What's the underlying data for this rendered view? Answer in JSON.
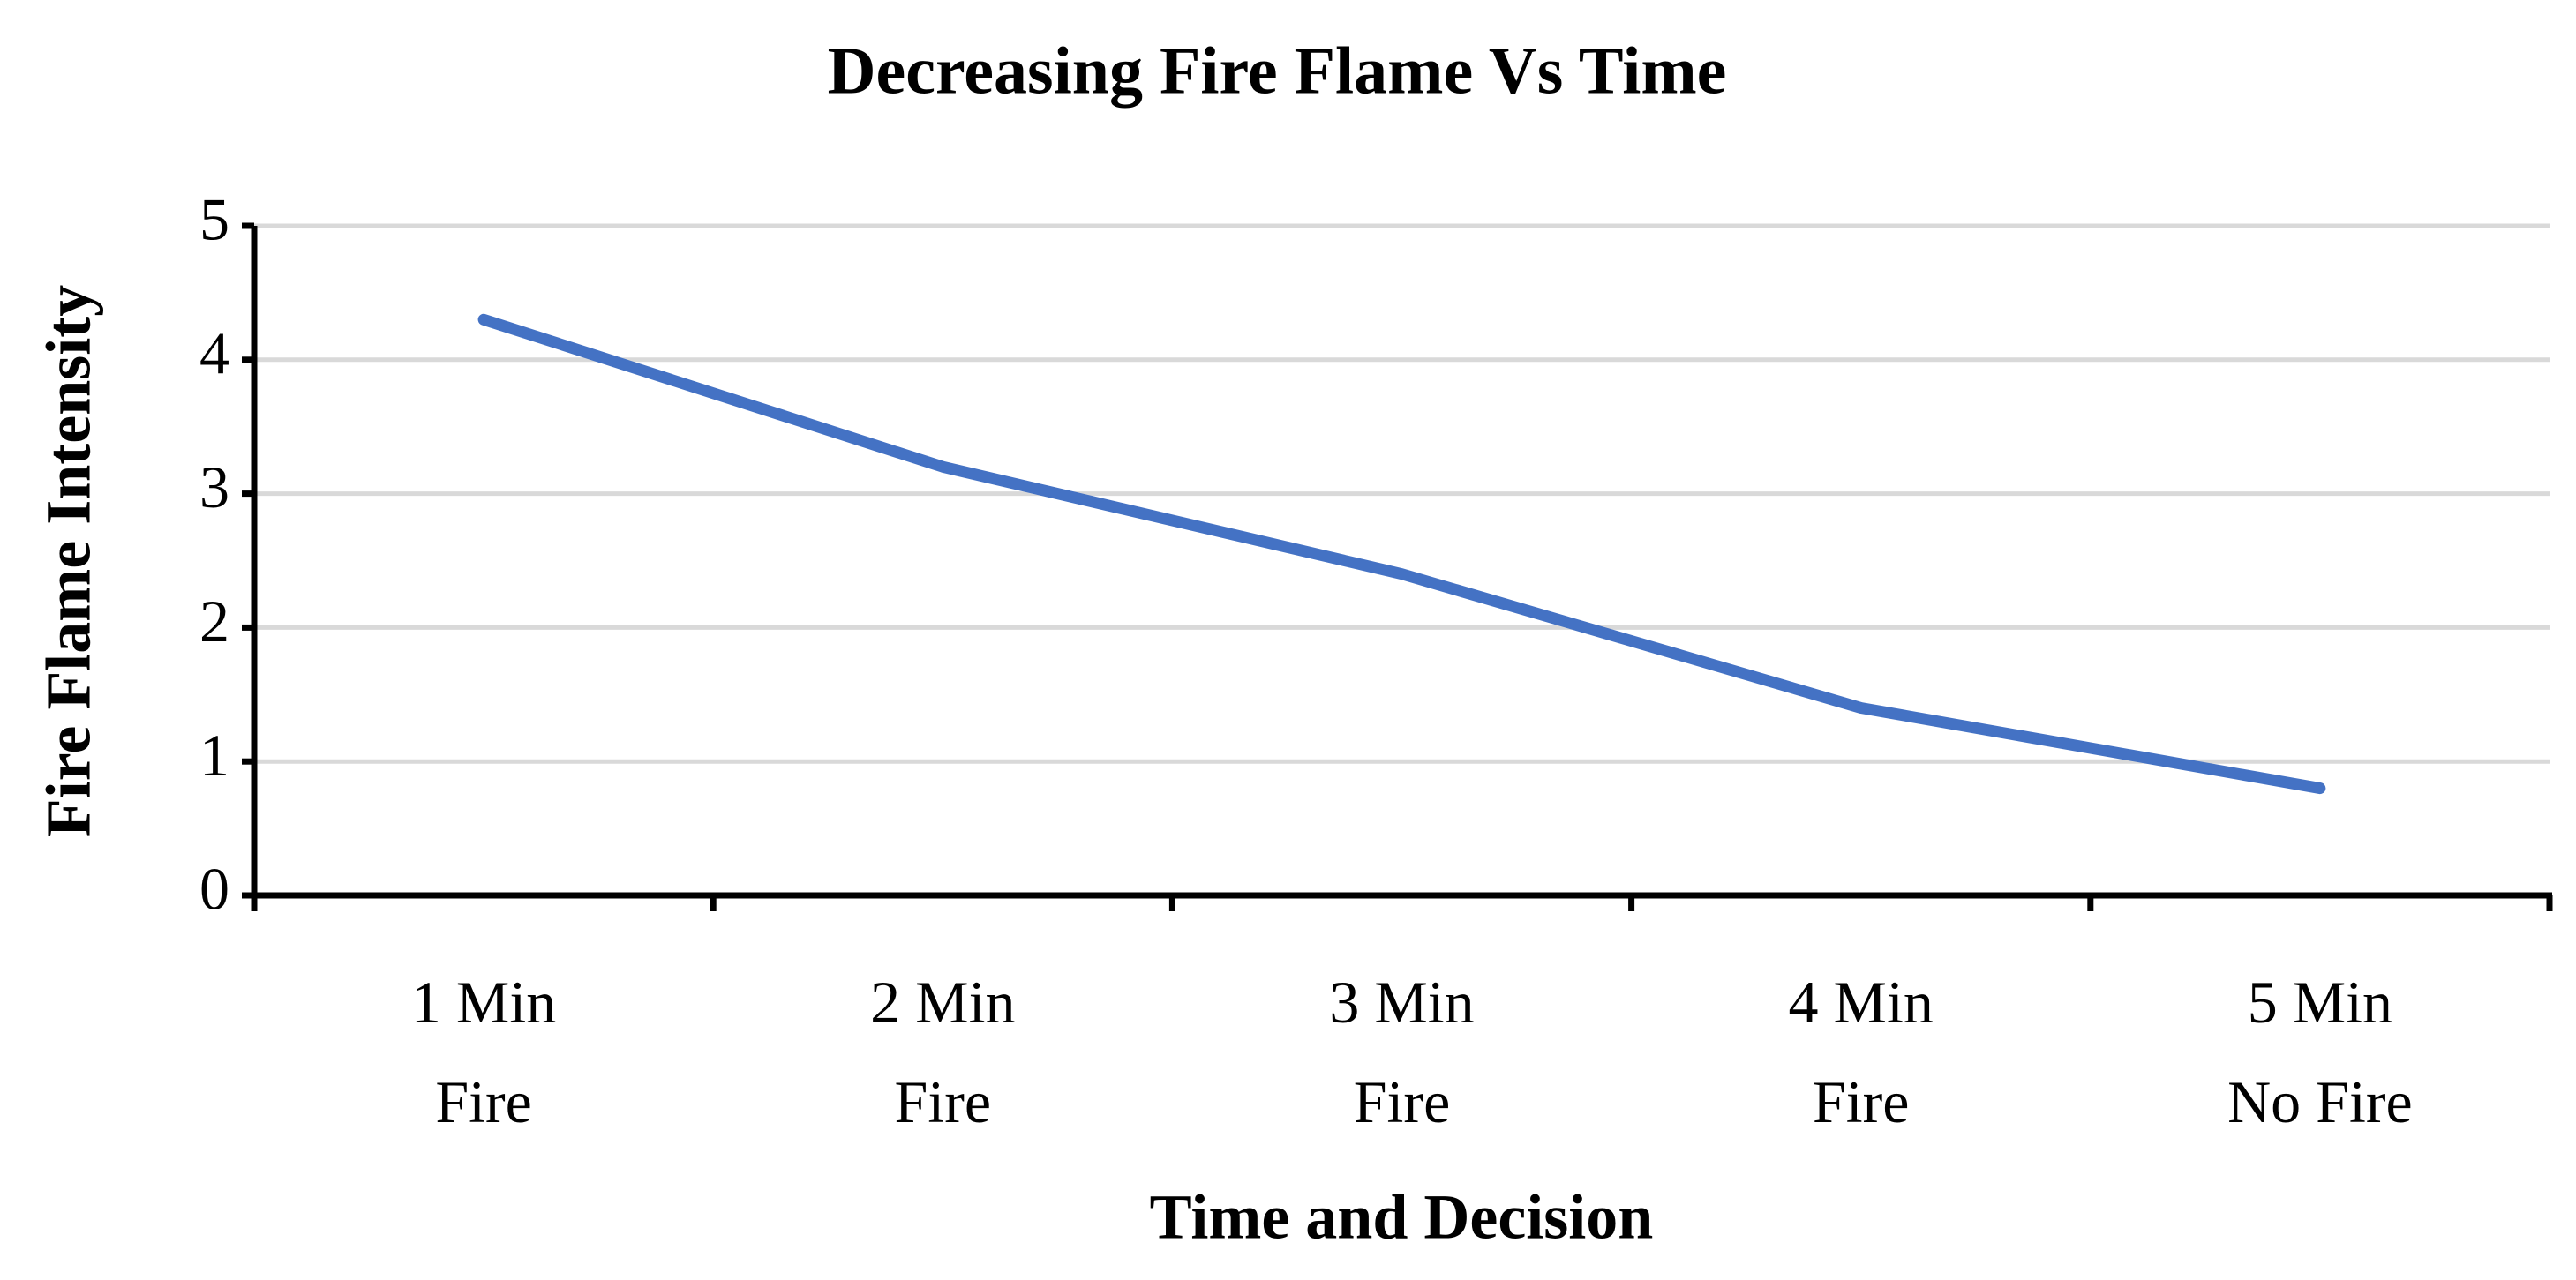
{
  "chart_data": {
    "type": "line",
    "title": "Decreasing Fire Flame Vs Time",
    "x_label": "Time and Decision",
    "y_label": "Fire Flame Intensity",
    "categories": [
      "1 Min\nFire",
      "2 Min\nFire",
      "3 Min\nFire",
      "4 Min\nFire",
      "5 Min\nNo Fire"
    ],
    "series": [
      {
        "name": "Fire Flame Intensity",
        "color": "#4472c4",
        "values": [
          4.3,
          3.2,
          2.4,
          1.4,
          0.8
        ]
      }
    ],
    "ylim": [
      0,
      5
    ],
    "yticks": [
      0,
      1,
      2,
      3,
      4,
      5
    ],
    "grid": true
  }
}
